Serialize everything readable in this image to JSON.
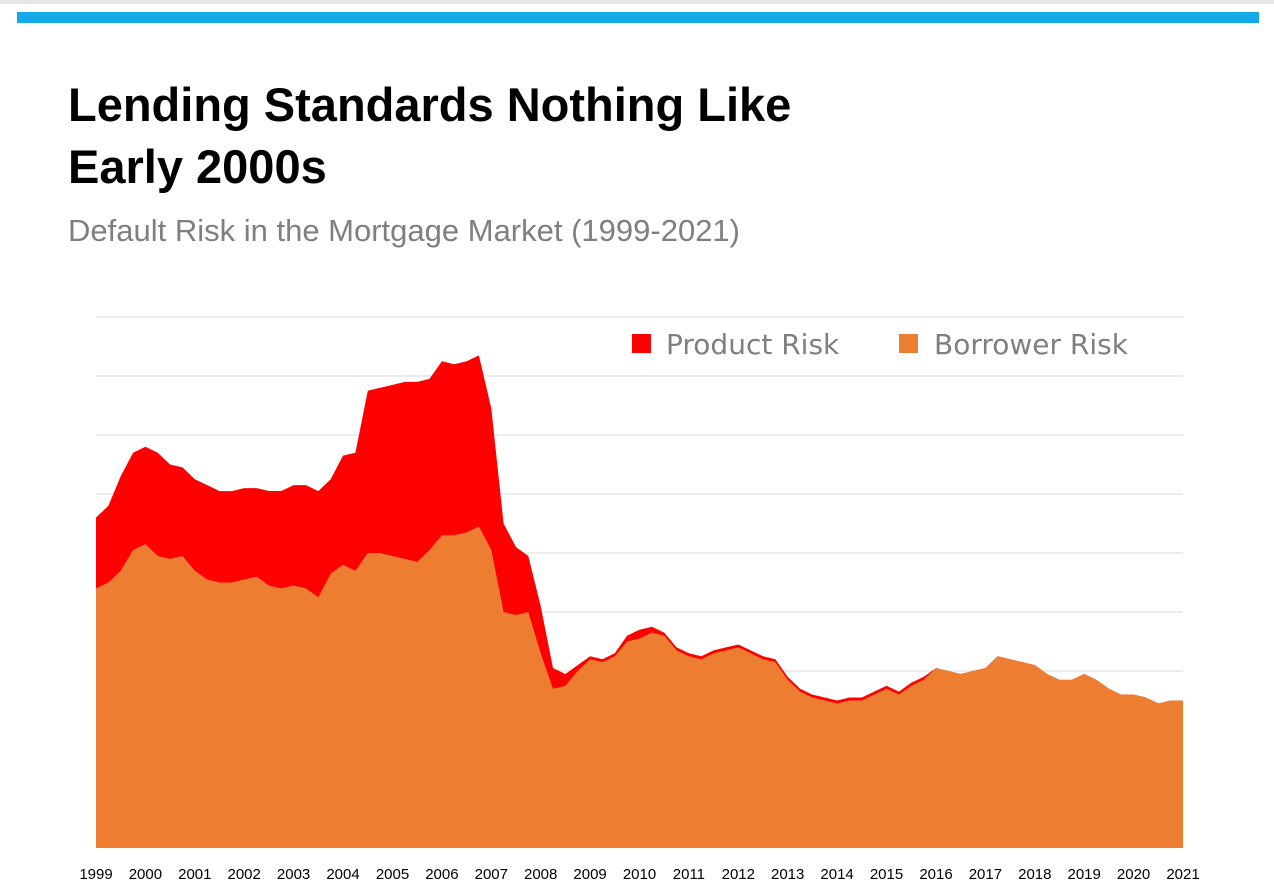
{
  "header": {
    "accent_color": "#15abe8",
    "title_line1": "Lending Standards Nothing Like",
    "title_line2": "Early 2000s",
    "subtitle": "Default Risk in the Mortgage Market (1999-2021)",
    "subtitle_color": "#7f7f7f"
  },
  "chart_data": {
    "type": "area",
    "stacked": true,
    "grid": true,
    "legend_position": "top-right",
    "x_ticks": [
      "1999",
      "2000",
      "2001",
      "2002",
      "2003",
      "2004",
      "2005",
      "2006",
      "2007",
      "2008",
      "2009",
      "2010",
      "2011",
      "2012",
      "2013",
      "2014",
      "2015",
      "2016",
      "2017",
      "2018",
      "2019",
      "2020",
      "2021"
    ],
    "x": [
      1999,
      1999.25,
      1999.5,
      1999.75,
      2000,
      2000.25,
      2000.5,
      2000.75,
      2001,
      2001.25,
      2001.5,
      2001.75,
      2002,
      2002.25,
      2002.5,
      2002.75,
      2003,
      2003.25,
      2003.5,
      2003.75,
      2004,
      2004.25,
      2004.5,
      2004.75,
      2005,
      2005.25,
      2005.5,
      2005.75,
      2006,
      2006.25,
      2006.5,
      2006.75,
      2007,
      2007.25,
      2007.5,
      2007.75,
      2008,
      2008.25,
      2008.5,
      2008.75,
      2009,
      2009.25,
      2009.5,
      2009.75,
      2010,
      2010.25,
      2010.5,
      2010.75,
      2011,
      2011.25,
      2011.5,
      2011.75,
      2012,
      2012.25,
      2012.5,
      2012.75,
      2013,
      2013.25,
      2013.5,
      2013.75,
      2014,
      2014.25,
      2014.5,
      2014.75,
      2015,
      2015.25,
      2015.5,
      2015.75,
      2016,
      2016.25,
      2016.5,
      2016.75,
      2017,
      2017.25,
      2017.5,
      2017.75,
      2018,
      2018.25,
      2018.5,
      2018.75,
      2019,
      2019.25,
      2019.5,
      2019.75,
      2020,
      2020.25,
      2020.5,
      2020.75,
      2021
    ],
    "ylim": [
      0,
      9
    ],
    "series": [
      {
        "name": "Borrower Risk",
        "color": "#ed7d31",
        "values": [
          4.4,
          4.5,
          4.7,
          5.05,
          5.15,
          4.95,
          4.9,
          4.95,
          4.7,
          4.55,
          4.5,
          4.5,
          4.55,
          4.6,
          4.45,
          4.4,
          4.45,
          4.4,
          4.25,
          4.65,
          4.8,
          4.7,
          5.0,
          5.0,
          4.95,
          4.9,
          4.85,
          5.05,
          5.3,
          5.3,
          5.35,
          5.45,
          5.05,
          4.0,
          3.95,
          4.0,
          3.3,
          2.7,
          2.75,
          3.0,
          3.2,
          3.15,
          3.25,
          3.5,
          3.55,
          3.65,
          3.6,
          3.35,
          3.25,
          3.2,
          3.3,
          3.35,
          3.4,
          3.3,
          3.2,
          3.15,
          2.85,
          2.65,
          2.55,
          2.5,
          2.45,
          2.5,
          2.5,
          2.6,
          2.7,
          2.6,
          2.75,
          2.85,
          3.05,
          3.0,
          2.95,
          3.0,
          3.05,
          3.25,
          3.2,
          3.15,
          3.1,
          2.95,
          2.85,
          2.85,
          2.95,
          2.85,
          2.7,
          2.6,
          2.6,
          2.55,
          2.45,
          2.5,
          2.5
        ]
      },
      {
        "name": "Product Risk",
        "color": "#ff0000",
        "values": [
          1.2,
          1.3,
          1.6,
          1.65,
          1.65,
          1.75,
          1.6,
          1.5,
          1.55,
          1.6,
          1.55,
          1.55,
          1.55,
          1.5,
          1.6,
          1.65,
          1.7,
          1.75,
          1.8,
          1.6,
          1.85,
          2.0,
          2.75,
          2.8,
          2.9,
          3.0,
          3.05,
          2.9,
          2.95,
          2.9,
          2.9,
          2.9,
          2.4,
          1.5,
          1.15,
          0.95,
          0.8,
          0.35,
          0.2,
          0.1,
          0.05,
          0.05,
          0.05,
          0.1,
          0.15,
          0.1,
          0.05,
          0.05,
          0.05,
          0.05,
          0.05,
          0.05,
          0.05,
          0.05,
          0.05,
          0.05,
          0.05,
          0.05,
          0.05,
          0.05,
          0.05,
          0.05,
          0.05,
          0.05,
          0.05,
          0.05,
          0.05,
          0.05,
          0.0,
          0.0,
          0.0,
          0.0,
          0.0,
          0.0,
          0.0,
          0.0,
          0.0,
          0.0,
          0.0,
          0.0,
          0.0,
          0.0,
          0.0,
          0.0,
          0.0,
          0.0,
          0.0,
          0.0,
          0.0
        ]
      }
    ]
  }
}
